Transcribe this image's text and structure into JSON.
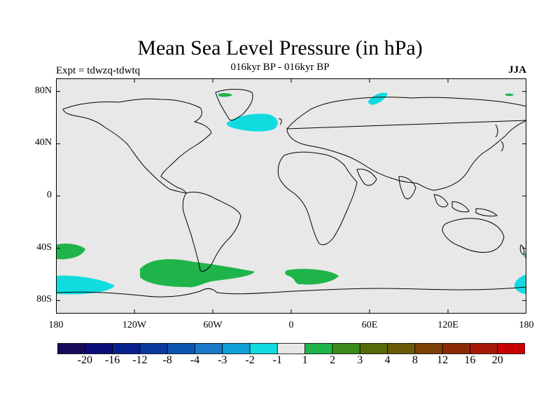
{
  "title": "Mean Sea Level Pressure (in hPa)",
  "subtitle": "016kyr BP - 016kyr BP",
  "expt": "Expt = tdwzq-tdwtq",
  "season": "JJA",
  "map": {
    "background": "#e8e8e8",
    "lat_labels": [
      "80N",
      "40N",
      "0",
      "40S",
      "80S"
    ],
    "lat_values": [
      80,
      40,
      0,
      -40,
      -80
    ],
    "lon_labels": [
      "180",
      "120W",
      "60W",
      "0",
      "60E",
      "120E",
      "180"
    ],
    "lon_values": [
      -180,
      -120,
      -60,
      0,
      60,
      120,
      180
    ]
  },
  "colorbar": {
    "colors": [
      "#1a0a5c",
      "#0c0c7a",
      "#08208e",
      "#0a3a9e",
      "#0a55b0",
      "#1a78c8",
      "#12a0d8",
      "#10dce0",
      "#e8e8e8",
      "#1fb44a",
      "#3a8a1a",
      "#566a0a",
      "#6a5a08",
      "#7a4006",
      "#8c2a06",
      "#a81806",
      "#c80004"
    ],
    "labels": [
      "-20",
      "-16",
      "-12",
      "-8",
      "-4",
      "-3",
      "-2",
      "-1",
      "1",
      "2",
      "3",
      "4",
      "8",
      "12",
      "16",
      "20"
    ]
  },
  "anomalies": [
    {
      "region": "North Atlantic",
      "sign": "negative",
      "color": "#10dce0"
    },
    {
      "region": "Barents Sea",
      "sign": "negative",
      "color": "#10dce0"
    },
    {
      "region": "South Pacific (west of Chile)",
      "sign": "positive",
      "color": "#1fb44a"
    },
    {
      "region": "South Atlantic",
      "sign": "positive",
      "color": "#1fb44a"
    },
    {
      "region": "Southern Ocean south of Africa",
      "sign": "positive",
      "color": "#1fb44a"
    },
    {
      "region": "South Pacific far west",
      "sign": "negative",
      "color": "#10dce0"
    }
  ]
}
